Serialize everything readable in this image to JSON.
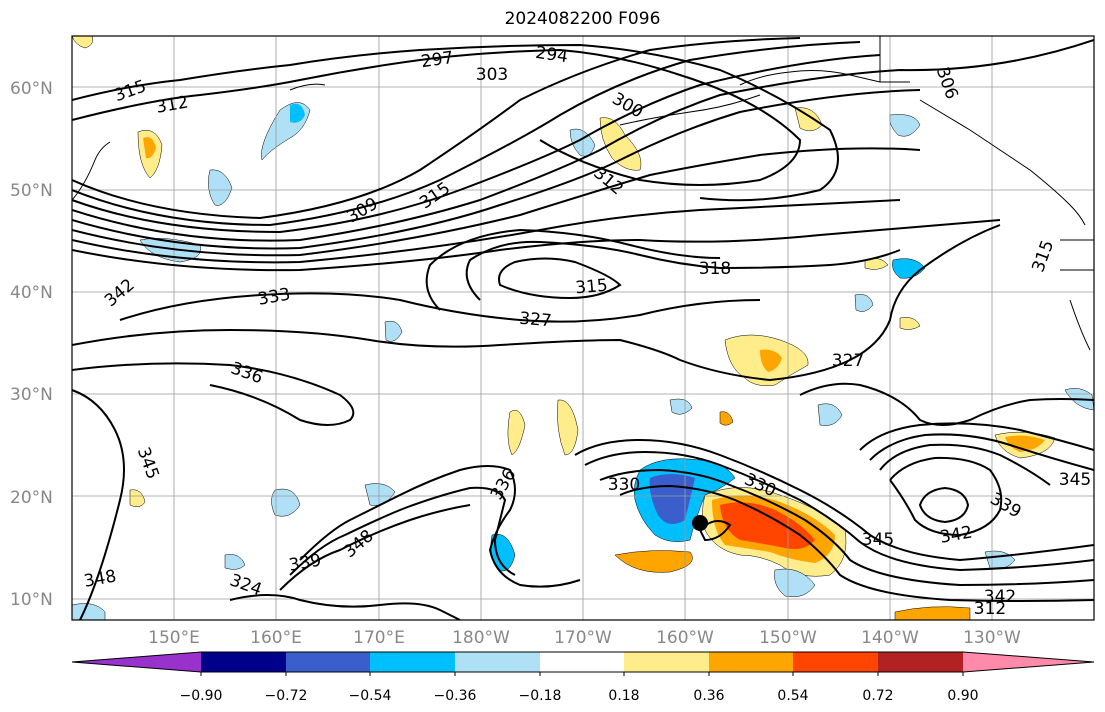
{
  "title": "2024082200 F096",
  "map": {
    "lat_labels": [
      "60°N",
      "50°N",
      "40°N",
      "30°N",
      "20°N",
      "10°N"
    ],
    "lon_labels": [
      "150°E",
      "160°E",
      "170°E",
      "180°W",
      "170°W",
      "160°W",
      "150°W",
      "140°W",
      "130°W"
    ],
    "contour_labels": [
      "315",
      "312",
      "297",
      "294",
      "303",
      "300",
      "306",
      "312",
      "309",
      "315",
      "318",
      "315",
      "327",
      "333",
      "342",
      "336",
      "327",
      "345",
      "336",
      "330",
      "330",
      "339",
      "348",
      "348",
      "324",
      "345",
      "342",
      "339",
      "345",
      "342",
      "312",
      "315"
    ]
  },
  "colorbar": {
    "tick_labels": [
      "−0.90",
      "−0.72",
      "−0.54",
      "−0.36",
      "−0.18",
      "0.18",
      "0.36",
      "0.54",
      "0.72",
      "0.90"
    ],
    "colors": [
      "#9932cc",
      "#00008b",
      "#3a5fcd",
      "#00bfff",
      "#b0e0f5",
      "#ffffff",
      "#ffec8b",
      "#ffa500",
      "#ff4500",
      "#b22222",
      "#ff8aaa"
    ]
  }
}
